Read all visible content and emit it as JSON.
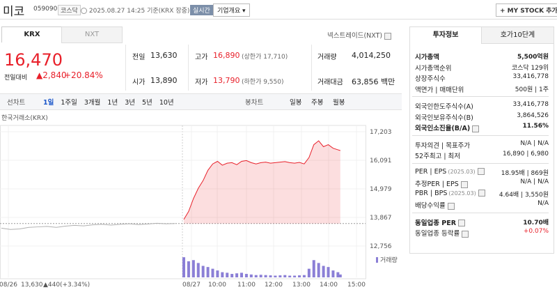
{
  "header": {
    "name": "미코",
    "code": "059090",
    "market": "코스닥",
    "time": "2025.08.27 14:25",
    "basis": "기준(KRX 장중)",
    "realtime": "실시간",
    "company_info": "기업개요 ▾",
    "my_stock": "+ MY STOCK 추가"
  },
  "exchange_tabs": [
    "KRX",
    "NXT"
  ],
  "nxt_label": "넥스트레이드(NXT)",
  "quote": {
    "price": "16,470",
    "change_label": "전일대비",
    "change": "▲2,840",
    "rate": "+20.84%",
    "stats": [
      [
        {
          "label": "전일",
          "value": "13,630"
        },
        {
          "label": "고가",
          "value": "16,890",
          "note": "(상한가 17,710)"
        },
        {
          "label": "거래량",
          "value": "4,014,250"
        }
      ],
      [
        {
          "label": "시가",
          "value": "13,890"
        },
        {
          "label": "저가",
          "value": "13,790",
          "note": "(하한가 9,550)"
        },
        {
          "label": "거래대금",
          "value": "63,856 백만"
        }
      ]
    ]
  },
  "period_tabs": {
    "line_label": "선차트",
    "line": [
      "1일",
      "1주일",
      "3개월",
      "1년",
      "3년",
      "5년",
      "10년"
    ],
    "candle_label": "봉차트",
    "candle": [
      "일봉",
      "주봉",
      "월봉"
    ]
  },
  "chart_data": {
    "type": "line",
    "source": "한국거래소(KRX)",
    "ylim": [
      12756,
      17203
    ],
    "yticks": [
      {
        "value": 12756,
        "label": "12,756"
      },
      {
        "value": 13867,
        "label": "13,867"
      },
      {
        "value": 14979,
        "label": "14,979"
      },
      {
        "value": 16091,
        "label": "16,091"
      },
      {
        "value": 17203,
        "label": "17,203"
      }
    ],
    "xticks": [
      "08/26",
      "08/27",
      "10:00",
      "11:00",
      "12:00",
      "13:00",
      "14:00",
      "15:00"
    ],
    "reference": 13630,
    "series": [
      {
        "color": "#b0b0b0",
        "x": [
          "09:00",
          "09:20",
          "09:40",
          "10:00",
          "10:20",
          "10:40",
          "11:00",
          "11:20",
          "11:40",
          "12:00",
          "12:20",
          "12:40",
          "13:00",
          "13:20",
          "13:40",
          "14:00",
          "14:20",
          "14:40",
          "15:00",
          "15:20"
        ],
        "values": [
          13450,
          13400,
          13420,
          13480,
          13500,
          13520,
          13480,
          13530,
          13560,
          13540,
          13580,
          13600,
          13570,
          13600,
          13620,
          13590,
          13610,
          13640,
          13620,
          13630
        ]
      },
      {
        "color": "#e8202a",
        "x": [
          "09:00",
          "09:10",
          "09:20",
          "09:30",
          "09:40",
          "09:50",
          "10:00",
          "10:10",
          "10:20",
          "10:30",
          "10:40",
          "10:50",
          "11:00",
          "11:10",
          "11:20",
          "11:30",
          "11:40",
          "11:50",
          "12:00",
          "12:10",
          "12:20",
          "12:30",
          "12:40",
          "12:50",
          "13:00",
          "13:10",
          "13:20",
          "13:30",
          "13:40",
          "13:50",
          "14:00",
          "14:10",
          "14:20",
          "14:25"
        ],
        "values": [
          13790,
          14100,
          14600,
          15000,
          15300,
          15700,
          15950,
          16050,
          15900,
          15980,
          16000,
          15920,
          16050,
          16080,
          16000,
          15950,
          16000,
          16020,
          15980,
          16000,
          16020,
          16040,
          16000,
          15980,
          16010,
          15950,
          16200,
          16700,
          16850,
          16620,
          16700,
          16560,
          16500,
          16470
        ]
      }
    ],
    "volume": {
      "name": "거래량",
      "color": "#8b7fd6",
      "ylim": [
        0,
        400000
      ],
      "values": [
        350000,
        280000,
        300000,
        250000,
        200000,
        180000,
        150000,
        120000,
        90000,
        80000,
        60000,
        70000,
        80000,
        60000,
        50000,
        40000,
        45000,
        40000,
        35000,
        30000,
        35000,
        40000,
        30000,
        30000,
        35000,
        40000,
        150000,
        300000,
        250000,
        200000,
        180000,
        120000,
        90000,
        50000
      ]
    },
    "hover": {
      "price": "13,630",
      "change": "▲440",
      "rate": "(+3.34%)"
    }
  },
  "invest": {
    "tabs": [
      "투자정보",
      "호가10단계"
    ],
    "groups": [
      [
        {
          "label": "시가총액",
          "value": "5,500억원",
          "bold": true
        },
        {
          "label": "시가총액순위",
          "value": "코스닥 129위"
        },
        {
          "label": "상장주식수",
          "value": "33,416,778"
        },
        {
          "label": "액면가 | 매매단위",
          "value": "500원 | 1주"
        }
      ],
      [
        {
          "label": "외국인한도주식수(A)",
          "value": "33,416,778"
        },
        {
          "label": "외국인보유주식수(B)",
          "value": "3,864,526"
        },
        {
          "label": "외국인소진율(B/A)",
          "value": "11.56%",
          "bold": true,
          "help": true
        }
      ],
      [
        {
          "label": "투자의견 | 목표주가",
          "value": "N/A | N/A"
        },
        {
          "label": "52주최고 | 최저",
          "value": "16,890 | 6,980"
        }
      ],
      [
        {
          "label": "PER | EPS",
          "period": "(2025.03)",
          "value": "18.95배 | 869원",
          "help": true
        },
        {
          "label": "추정PER | EPS",
          "value": "N/A | N/A",
          "help": true
        },
        {
          "label": "PBR | BPS",
          "period": "(2025.03)",
          "value": "4.64배 | 3,550원",
          "help": true
        },
        {
          "label": "배당수익률",
          "value": "N/A",
          "help": true
        }
      ],
      [
        {
          "label": "동일업종 PER",
          "value": "10.70배",
          "bold": true,
          "help": true
        },
        {
          "label": "동일업종 등락률",
          "value": "+0.07%",
          "help": true,
          "red": true
        }
      ]
    ]
  }
}
